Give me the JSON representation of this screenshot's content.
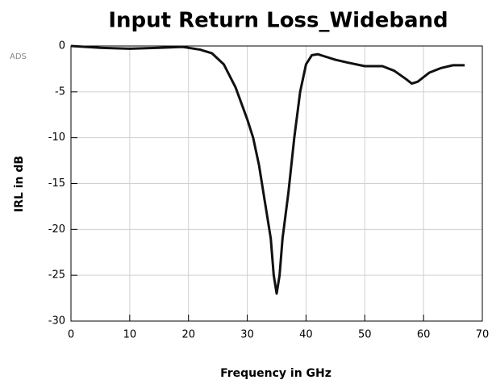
{
  "chart_data": {
    "type": "line",
    "title": "Input Return Loss_Wideband",
    "annotation": "ADS",
    "xlabel": "Frequency in GHz",
    "ylabel": "IRL in dB",
    "x": [
      0,
      5,
      10,
      15,
      19,
      22,
      24,
      26,
      28,
      30,
      31,
      32,
      33,
      34,
      34.5,
      35,
      35.5,
      36,
      37,
      38,
      39,
      40,
      41,
      42,
      43,
      45,
      47,
      50,
      53,
      55,
      57,
      58,
      59,
      61,
      63,
      65,
      67
    ],
    "series": [
      {
        "name": "IRL",
        "color": "#111111",
        "values": [
          0,
          -0.2,
          -0.3,
          -0.2,
          -0.1,
          -0.4,
          -0.8,
          -2,
          -4.5,
          -8,
          -10,
          -13,
          -17,
          -21,
          -25,
          -27,
          -25,
          -21,
          -16,
          -10,
          -5,
          -2,
          -1,
          -0.9,
          -1.1,
          -1.5,
          -1.8,
          -2.2,
          -2.2,
          -2.7,
          -3.6,
          -4.1,
          -3.9,
          -2.9,
          -2.4,
          -2.1,
          -2.1
        ]
      }
    ],
    "xlim": [
      0,
      70
    ],
    "xticks": [
      0,
      10,
      20,
      30,
      40,
      50,
      60,
      70
    ],
    "ylim": [
      -30,
      0
    ],
    "yticks": [
      0,
      -5,
      -10,
      -15,
      -20,
      -25,
      -30
    ],
    "grid": true
  }
}
